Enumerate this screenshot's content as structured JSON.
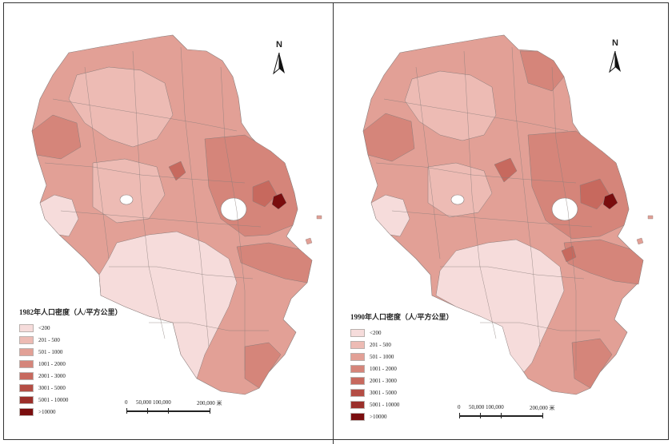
{
  "maps": [
    {
      "id": "1982",
      "legend_title": "1982年人口密度（人/平方公里）",
      "north_label": "N",
      "scale": {
        "labels": [
          "0",
          "50,000 100,000",
          "200,000 米"
        ]
      }
    },
    {
      "id": "1990",
      "legend_title": "1990年人口密度（人/平方公里）",
      "north_label": "N",
      "scale": {
        "labels": [
          "0",
          "50,000 100,000",
          "200,000 米"
        ]
      }
    }
  ],
  "legend_classes": [
    {
      "label": "<200",
      "color": "#f6dcdb"
    },
    {
      "label": "201 - 500",
      "color": "#edbbb4"
    },
    {
      "label": "501 - 1000",
      "color": "#e2a096"
    },
    {
      "label": "1001 - 2000",
      "color": "#d5857a"
    },
    {
      "label": "2001 - 3000",
      "color": "#c7695e"
    },
    {
      "label": "3001 - 5000",
      "color": "#b44d44"
    },
    {
      "label": "5001 - 10000",
      "color": "#9b2f2a"
    },
    {
      "label": ">10000",
      "color": "#7a0d0e"
    }
  ],
  "colors": {
    "border": "#8a7d7b",
    "lake": "#ffffff"
  }
}
